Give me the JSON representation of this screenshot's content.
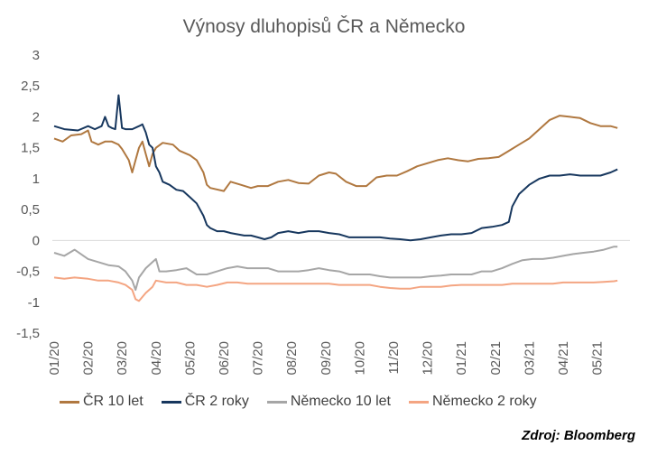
{
  "chart_data": {
    "type": "line",
    "title": "Výnosy dluhopisů ČR a Německo",
    "xlabel": "",
    "ylabel": "",
    "x_tick_labels": [
      "01/20",
      "02/20",
      "03/20",
      "04/20",
      "05/20",
      "06/20",
      "07/20",
      "08/20",
      "09/20",
      "10/20",
      "11/20",
      "12/20",
      "01/21",
      "02/21",
      "03/21",
      "04/21",
      "05/21"
    ],
    "y_tick_labels": [
      "3",
      "2,5",
      "2",
      "1,5",
      "1",
      "0,5",
      "0",
      "-0,5",
      "-1",
      "-1,5"
    ],
    "y_ticks": [
      3,
      2.5,
      2,
      1.5,
      1,
      0.5,
      0,
      -0.5,
      -1,
      -1.5
    ],
    "ylim": [
      -1.5,
      3
    ],
    "xlim": [
      0,
      16.8
    ],
    "grid": false,
    "legend_position": "bottom",
    "series": [
      {
        "name": "ČR 10 let",
        "color": "#B07840",
        "points": [
          [
            0,
            1.65
          ],
          [
            0.25,
            1.6
          ],
          [
            0.5,
            1.7
          ],
          [
            0.8,
            1.72
          ],
          [
            1,
            1.78
          ],
          [
            1.1,
            1.6
          ],
          [
            1.3,
            1.55
          ],
          [
            1.5,
            1.6
          ],
          [
            1.7,
            1.6
          ],
          [
            1.9,
            1.55
          ],
          [
            2,
            1.48
          ],
          [
            2.2,
            1.3
          ],
          [
            2.3,
            1.1
          ],
          [
            2.4,
            1.3
          ],
          [
            2.5,
            1.5
          ],
          [
            2.6,
            1.6
          ],
          [
            2.7,
            1.4
          ],
          [
            2.8,
            1.2
          ],
          [
            2.9,
            1.4
          ],
          [
            3.0,
            1.5
          ],
          [
            3.2,
            1.58
          ],
          [
            3.5,
            1.55
          ],
          [
            3.7,
            1.45
          ],
          [
            4.0,
            1.38
          ],
          [
            4.2,
            1.3
          ],
          [
            4.4,
            1.1
          ],
          [
            4.5,
            0.9
          ],
          [
            4.6,
            0.85
          ],
          [
            5.0,
            0.8
          ],
          [
            5.2,
            0.95
          ],
          [
            5.5,
            0.9
          ],
          [
            5.8,
            0.85
          ],
          [
            6.0,
            0.88
          ],
          [
            6.3,
            0.88
          ],
          [
            6.6,
            0.95
          ],
          [
            6.9,
            0.98
          ],
          [
            7.2,
            0.93
          ],
          [
            7.5,
            0.92
          ],
          [
            7.8,
            1.05
          ],
          [
            8.1,
            1.1
          ],
          [
            8.3,
            1.08
          ],
          [
            8.6,
            0.95
          ],
          [
            8.9,
            0.88
          ],
          [
            9.2,
            0.88
          ],
          [
            9.5,
            1.02
          ],
          [
            9.8,
            1.05
          ],
          [
            10.1,
            1.05
          ],
          [
            10.4,
            1.12
          ],
          [
            10.7,
            1.2
          ],
          [
            11.0,
            1.25
          ],
          [
            11.3,
            1.3
          ],
          [
            11.6,
            1.33
          ],
          [
            11.9,
            1.3
          ],
          [
            12.2,
            1.28
          ],
          [
            12.5,
            1.32
          ],
          [
            12.8,
            1.33
          ],
          [
            13.1,
            1.35
          ],
          [
            13.4,
            1.45
          ],
          [
            13.7,
            1.55
          ],
          [
            14.0,
            1.65
          ],
          [
            14.3,
            1.8
          ],
          [
            14.6,
            1.95
          ],
          [
            14.9,
            2.02
          ],
          [
            15.2,
            2.0
          ],
          [
            15.5,
            1.98
          ],
          [
            15.8,
            1.9
          ],
          [
            16.1,
            1.85
          ],
          [
            16.4,
            1.85
          ],
          [
            16.6,
            1.82
          ]
        ]
      },
      {
        "name": "ČR 2 roky",
        "color": "#17375E",
        "points": [
          [
            0,
            1.85
          ],
          [
            0.3,
            1.8
          ],
          [
            0.7,
            1.78
          ],
          [
            1,
            1.85
          ],
          [
            1.2,
            1.8
          ],
          [
            1.4,
            1.85
          ],
          [
            1.5,
            2.0
          ],
          [
            1.6,
            1.85
          ],
          [
            1.7,
            1.82
          ],
          [
            1.8,
            1.8
          ],
          [
            1.9,
            2.35
          ],
          [
            2.0,
            1.82
          ],
          [
            2.1,
            1.8
          ],
          [
            2.3,
            1.8
          ],
          [
            2.5,
            1.85
          ],
          [
            2.6,
            1.88
          ],
          [
            2.7,
            1.75
          ],
          [
            2.8,
            1.55
          ],
          [
            2.9,
            1.5
          ],
          [
            3.0,
            1.2
          ],
          [
            3.1,
            1.1
          ],
          [
            3.2,
            0.95
          ],
          [
            3.4,
            0.9
          ],
          [
            3.6,
            0.82
          ],
          [
            3.8,
            0.8
          ],
          [
            4.0,
            0.7
          ],
          [
            4.2,
            0.6
          ],
          [
            4.4,
            0.4
          ],
          [
            4.5,
            0.25
          ],
          [
            4.6,
            0.2
          ],
          [
            4.8,
            0.15
          ],
          [
            5.0,
            0.15
          ],
          [
            5.2,
            0.12
          ],
          [
            5.4,
            0.1
          ],
          [
            5.6,
            0.08
          ],
          [
            5.8,
            0.08
          ],
          [
            6.0,
            0.05
          ],
          [
            6.2,
            0.02
          ],
          [
            6.4,
            0.05
          ],
          [
            6.6,
            0.12
          ],
          [
            6.9,
            0.15
          ],
          [
            7.2,
            0.12
          ],
          [
            7.5,
            0.15
          ],
          [
            7.8,
            0.15
          ],
          [
            8.1,
            0.12
          ],
          [
            8.4,
            0.1
          ],
          [
            8.7,
            0.05
          ],
          [
            9.0,
            0.05
          ],
          [
            9.3,
            0.05
          ],
          [
            9.6,
            0.05
          ],
          [
            9.9,
            0.03
          ],
          [
            10.2,
            0.02
          ],
          [
            10.5,
            0.0
          ],
          [
            10.8,
            0.02
          ],
          [
            11.1,
            0.05
          ],
          [
            11.4,
            0.08
          ],
          [
            11.7,
            0.1
          ],
          [
            12.0,
            0.1
          ],
          [
            12.3,
            0.12
          ],
          [
            12.6,
            0.2
          ],
          [
            12.9,
            0.22
          ],
          [
            13.2,
            0.25
          ],
          [
            13.4,
            0.3
          ],
          [
            13.5,
            0.55
          ],
          [
            13.7,
            0.75
          ],
          [
            14.0,
            0.9
          ],
          [
            14.3,
            1.0
          ],
          [
            14.6,
            1.05
          ],
          [
            14.9,
            1.05
          ],
          [
            15.2,
            1.07
          ],
          [
            15.5,
            1.05
          ],
          [
            15.8,
            1.05
          ],
          [
            16.1,
            1.05
          ],
          [
            16.4,
            1.1
          ],
          [
            16.6,
            1.15
          ]
        ]
      },
      {
        "name": "Německo 10 let",
        "color": "#A6A6A6",
        "points": [
          [
            0,
            -0.2
          ],
          [
            0.3,
            -0.25
          ],
          [
            0.6,
            -0.15
          ],
          [
            1.0,
            -0.3
          ],
          [
            1.3,
            -0.35
          ],
          [
            1.6,
            -0.4
          ],
          [
            1.9,
            -0.42
          ],
          [
            2.1,
            -0.5
          ],
          [
            2.3,
            -0.65
          ],
          [
            2.4,
            -0.8
          ],
          [
            2.5,
            -0.6
          ],
          [
            2.7,
            -0.45
          ],
          [
            2.9,
            -0.35
          ],
          [
            3.0,
            -0.3
          ],
          [
            3.1,
            -0.5
          ],
          [
            3.3,
            -0.5
          ],
          [
            3.6,
            -0.48
          ],
          [
            3.9,
            -0.45
          ],
          [
            4.2,
            -0.55
          ],
          [
            4.5,
            -0.55
          ],
          [
            4.8,
            -0.5
          ],
          [
            5.1,
            -0.45
          ],
          [
            5.4,
            -0.42
          ],
          [
            5.7,
            -0.45
          ],
          [
            6.0,
            -0.45
          ],
          [
            6.3,
            -0.45
          ],
          [
            6.6,
            -0.5
          ],
          [
            6.9,
            -0.5
          ],
          [
            7.2,
            -0.5
          ],
          [
            7.5,
            -0.48
          ],
          [
            7.8,
            -0.45
          ],
          [
            8.1,
            -0.48
          ],
          [
            8.4,
            -0.5
          ],
          [
            8.7,
            -0.55
          ],
          [
            9.0,
            -0.55
          ],
          [
            9.3,
            -0.55
          ],
          [
            9.6,
            -0.58
          ],
          [
            9.9,
            -0.6
          ],
          [
            10.2,
            -0.6
          ],
          [
            10.5,
            -0.6
          ],
          [
            10.8,
            -0.6
          ],
          [
            11.1,
            -0.58
          ],
          [
            11.4,
            -0.57
          ],
          [
            11.7,
            -0.55
          ],
          [
            12.0,
            -0.55
          ],
          [
            12.3,
            -0.55
          ],
          [
            12.6,
            -0.5
          ],
          [
            12.9,
            -0.5
          ],
          [
            13.2,
            -0.45
          ],
          [
            13.5,
            -0.38
          ],
          [
            13.8,
            -0.32
          ],
          [
            14.1,
            -0.3
          ],
          [
            14.4,
            -0.3
          ],
          [
            14.7,
            -0.28
          ],
          [
            15.0,
            -0.25
          ],
          [
            15.3,
            -0.22
          ],
          [
            15.6,
            -0.2
          ],
          [
            15.9,
            -0.18
          ],
          [
            16.2,
            -0.15
          ],
          [
            16.5,
            -0.1
          ],
          [
            16.6,
            -0.1
          ]
        ]
      },
      {
        "name": "Německo 2 roky",
        "color": "#F4A582",
        "points": [
          [
            0,
            -0.6
          ],
          [
            0.3,
            -0.62
          ],
          [
            0.6,
            -0.6
          ],
          [
            1.0,
            -0.62
          ],
          [
            1.3,
            -0.65
          ],
          [
            1.6,
            -0.65
          ],
          [
            1.9,
            -0.68
          ],
          [
            2.1,
            -0.72
          ],
          [
            2.3,
            -0.8
          ],
          [
            2.4,
            -0.95
          ],
          [
            2.5,
            -0.98
          ],
          [
            2.7,
            -0.85
          ],
          [
            2.9,
            -0.75
          ],
          [
            3.0,
            -0.65
          ],
          [
            3.3,
            -0.68
          ],
          [
            3.6,
            -0.68
          ],
          [
            3.9,
            -0.72
          ],
          [
            4.2,
            -0.72
          ],
          [
            4.5,
            -0.75
          ],
          [
            4.8,
            -0.72
          ],
          [
            5.1,
            -0.68
          ],
          [
            5.4,
            -0.68
          ],
          [
            5.7,
            -0.7
          ],
          [
            6.0,
            -0.7
          ],
          [
            6.3,
            -0.7
          ],
          [
            6.6,
            -0.7
          ],
          [
            6.9,
            -0.7
          ],
          [
            7.2,
            -0.7
          ],
          [
            7.5,
            -0.7
          ],
          [
            7.8,
            -0.7
          ],
          [
            8.1,
            -0.7
          ],
          [
            8.4,
            -0.72
          ],
          [
            8.7,
            -0.72
          ],
          [
            9.0,
            -0.72
          ],
          [
            9.3,
            -0.72
          ],
          [
            9.6,
            -0.75
          ],
          [
            9.9,
            -0.77
          ],
          [
            10.2,
            -0.78
          ],
          [
            10.5,
            -0.78
          ],
          [
            10.8,
            -0.75
          ],
          [
            11.1,
            -0.75
          ],
          [
            11.4,
            -0.75
          ],
          [
            11.7,
            -0.73
          ],
          [
            12.0,
            -0.72
          ],
          [
            12.3,
            -0.72
          ],
          [
            12.6,
            -0.72
          ],
          [
            12.9,
            -0.72
          ],
          [
            13.2,
            -0.72
          ],
          [
            13.5,
            -0.7
          ],
          [
            13.8,
            -0.7
          ],
          [
            14.1,
            -0.7
          ],
          [
            14.4,
            -0.7
          ],
          [
            14.7,
            -0.7
          ],
          [
            15.0,
            -0.68
          ],
          [
            15.3,
            -0.68
          ],
          [
            15.6,
            -0.68
          ],
          [
            15.9,
            -0.68
          ],
          [
            16.2,
            -0.67
          ],
          [
            16.5,
            -0.66
          ],
          [
            16.6,
            -0.65
          ]
        ]
      }
    ]
  },
  "source_note": "Zdroj: Bloomberg"
}
